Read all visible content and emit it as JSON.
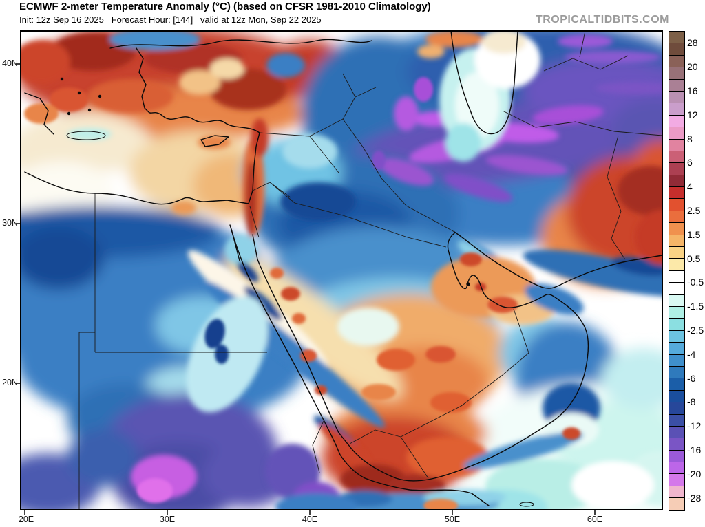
{
  "header": {
    "title": "ECMWF 2-meter Temperature Anomaly (°C) (based on CFSR 1981-2010 Climatology)",
    "subtitle": "Init: 12z Sep 16 2025   Forecast Hour: [144]   valid at 12z Mon, Sep 22 2025",
    "init": "Init: 12z Sep 16 2025",
    "forecast_hour": "Forecast Hour: [144]",
    "valid": "valid at 12z Mon, Sep 22 2025",
    "watermark": "TROPICALTIDBITS.COM"
  },
  "map": {
    "x_axis": {
      "labels": [
        "20E",
        "30E",
        "40E",
        "50E",
        "60E"
      ]
    },
    "y_axis": {
      "labels": [
        "40N",
        "30N",
        "20N"
      ]
    }
  },
  "colorbar": {
    "unit": "°C",
    "labels": [
      "28",
      "20",
      "16",
      "12",
      "8",
      "6",
      "4",
      "2.5",
      "1.5",
      "0.5",
      "-0.5",
      "-1.5",
      "-2.5",
      "-4",
      "-6",
      "-8",
      "-12",
      "-16",
      "-20",
      "-28"
    ],
    "cells": [
      "#7d6048",
      "#6f4c3c",
      "#8a6158",
      "#987178",
      "#aa8095",
      "#ba90b3",
      "#ca9ecb",
      "#f2abe3",
      "#eb9bc6",
      "#e183a0",
      "#cb6076",
      "#ac4052",
      "#912b37",
      "#c62e2c",
      "#e2512f",
      "#ea6e3d",
      "#f0914e",
      "#f5b568",
      "#f9d285",
      "#fce9a9",
      "#ffffff",
      "#ffffff",
      "#d9f9f3",
      "#aff0e5",
      "#8bdfe1",
      "#6cc3e1",
      "#55aadb",
      "#3f8fcb",
      "#2f7abc",
      "#1b5ea8",
      "#1a4e9e",
      "#27479a",
      "#3b4fa5",
      "#5a51b5",
      "#7a55c5",
      "#9b5ad8",
      "#bc66e8",
      "#d478ea",
      "#e38ada",
      "#ea9cd0"
    ],
    "cells_tail_note": ""
  },
  "chart_data": {
    "type": "heatmap",
    "title": "ECMWF 2-meter Temperature Anomaly (°C) (based on CFSR 1981-2010 Climatology)",
    "units": "°C",
    "model": "ECMWF",
    "init_time": "12z Sep 16 2025",
    "forecast_hour": 144,
    "valid_time": "12z Mon, Sep 22 2025",
    "domain_lon_range": [
      20,
      65
    ],
    "domain_lat_range": [
      12,
      42
    ],
    "lon_ticks": [
      "20E",
      "30E",
      "40E",
      "50E",
      "60E"
    ],
    "lat_ticks": [
      "40N",
      "30N",
      "20N"
    ],
    "colorbar_labeled_levels": [
      28,
      20,
      16,
      12,
      8,
      6,
      4,
      2.5,
      1.5,
      0.5,
      -0.5,
      -1.5,
      -2.5,
      -4,
      -6,
      -8,
      -12,
      -16,
      -20,
      -28
    ],
    "features": [
      {
        "region": "Turkey / Anatolia / Aegean",
        "anomaly_c": "+4 to +8 (warm, red)"
      },
      {
        "region": "Levant coast (Lebanon/Israel)",
        "anomaly_c": "+4 to +6 (narrow warm strip)"
      },
      {
        "region": "Eastern Mediterranean / Cyprus",
        "anomaly_c": "+0.5 to +2 (pale warm)"
      },
      {
        "region": "NW Iran / Alborz band",
        "anomaly_c": "-10 to -18 (purple/magenta)"
      },
      {
        "region": "Turkmenistan / NE corner",
        "anomaly_c": "-6 to -12 (blue/purple)"
      },
      {
        "region": "South Caspian Sea",
        "anomaly_c": "-0.5 to -2 (pale cyan)"
      },
      {
        "region": "Iraq / Syria interior / N Saudi",
        "anomaly_c": "-2 to -6 (blue)"
      },
      {
        "region": "Egypt / Libya",
        "anomaly_c": "-2 to -6 (blue)"
      },
      {
        "region": "NW Sudan / Chad",
        "anomaly_c": "-8 to -16 (purple with magenta core)"
      },
      {
        "region": "Central Saudi Arabia / Hejaz",
        "anomaly_c": "+1 to +4 with +6 spots"
      },
      {
        "region": "Persian Gulf coast / Qatar-UAE",
        "anomaly_c": "+2 to +6 (orange)"
      },
      {
        "region": "Yemen highlands",
        "anomaly_c": "+4 to +8 (dark red)"
      },
      {
        "region": "Oman interior",
        "anomaly_c": "-2 to -6 (blue)"
      },
      {
        "region": "SE Iran / W Pakistan",
        "anomaly_c": "+4 to +8 (red)"
      },
      {
        "region": "Arabian Sea",
        "anomaly_c": "-0.5 to -1.5 (pale cyan/white)"
      }
    ]
  }
}
